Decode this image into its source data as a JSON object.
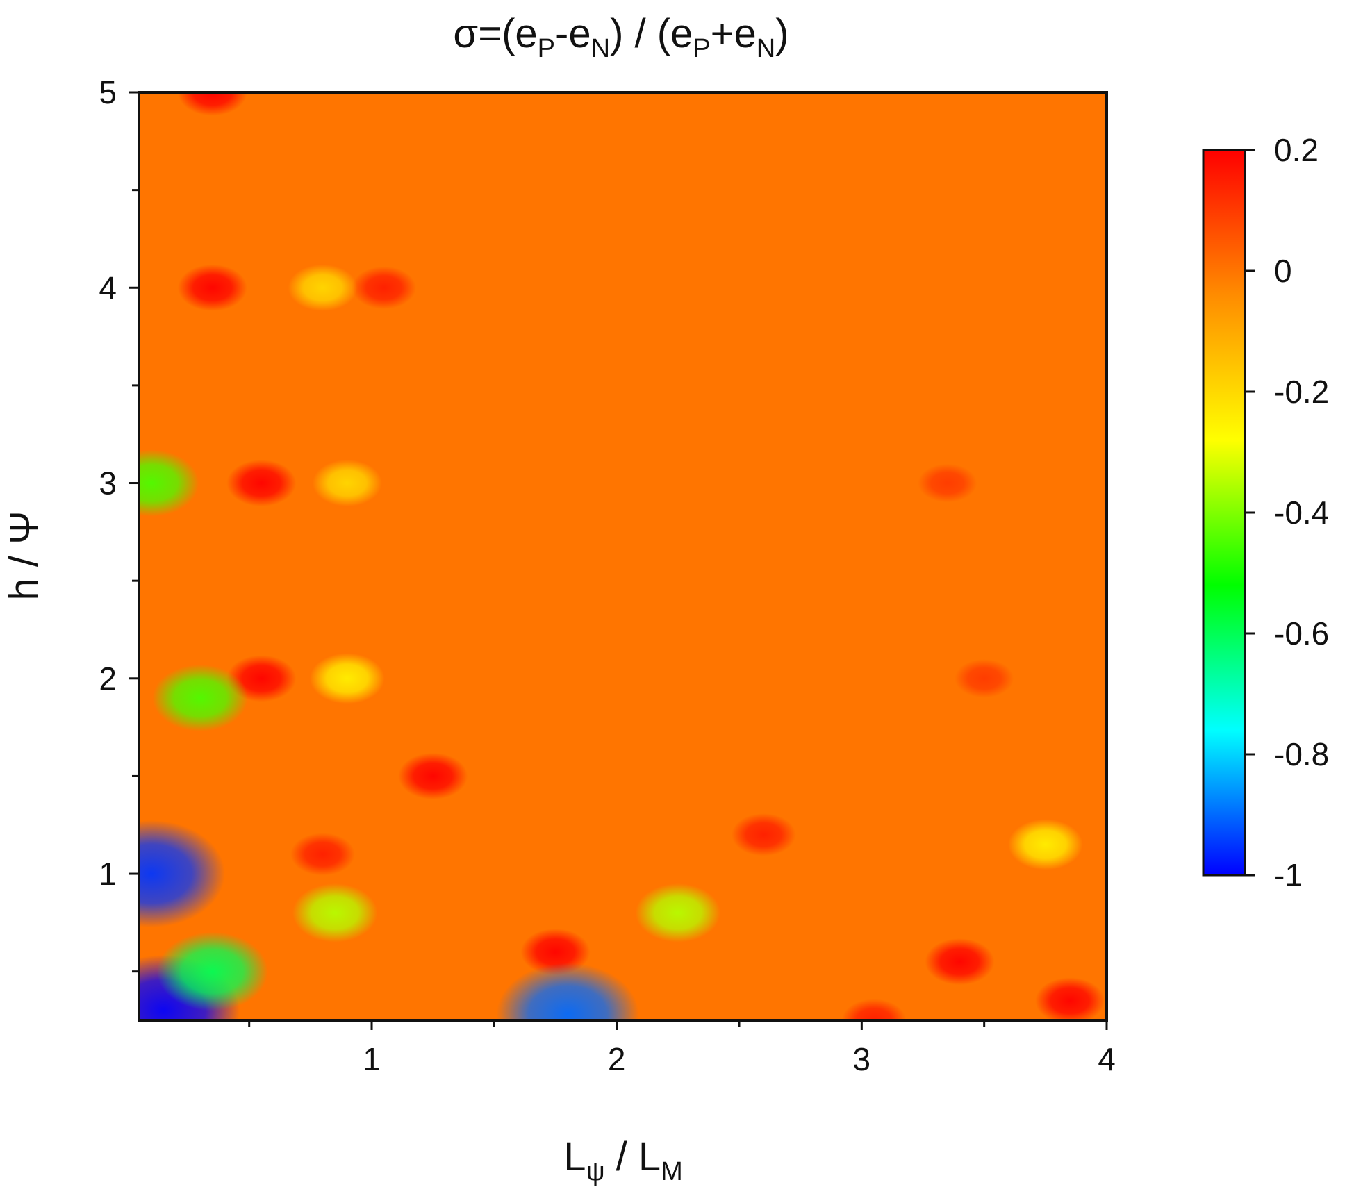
{
  "chart_data": {
    "type": "heatmap",
    "title": "σ=(eP-eN) / (eP+eN)",
    "title_parts": {
      "main_prefix": "σ=(e",
      "sub_p1": "P",
      "main_mid1": "-e",
      "sub_n1": "N",
      "main_mid2": ") / (e",
      "sub_p2": "P",
      "main_mid3": "+e",
      "sub_n2": "N",
      "main_suffix": ")"
    },
    "xlabel": "Lψ / LM",
    "xlabel_parts": {
      "main1": "L",
      "sub1": "ψ",
      "main2": " / L",
      "sub2": "M"
    },
    "ylabel": "h / Ψ",
    "xlim": [
      0.05,
      4.0
    ],
    "ylim": [
      0.25,
      5.0
    ],
    "x_ticks": [
      "1",
      "2",
      "3",
      "4"
    ],
    "x_tick_values": [
      1,
      2,
      3,
      4
    ],
    "y_ticks": [
      "1",
      "2",
      "3",
      "4",
      "5"
    ],
    "y_tick_values": [
      1,
      2,
      3,
      4,
      5
    ],
    "colorbar": {
      "min": -1.0,
      "max": 0.2,
      "tick_labels": [
        "0.2",
        "0",
        "-0.2",
        "-0.4",
        "-0.6",
        "-0.8",
        "-1"
      ],
      "tick_values": [
        0.2,
        0.0,
        -0.2,
        -0.4,
        -0.6,
        -0.8,
        -1.0
      ],
      "colors": [
        "#0000ff",
        "#00ffff",
        "#00ff00",
        "#ffff00",
        "#ff8c00",
        "#ff0000"
      ]
    },
    "background_value": 0.0,
    "features": [
      {
        "x": 0.35,
        "y": 5.0,
        "value": 0.2
      },
      {
        "x": 0.35,
        "y": 4.0,
        "value": 0.2
      },
      {
        "x": 0.55,
        "y": 3.0,
        "value": 0.2
      },
      {
        "x": 0.55,
        "y": 2.0,
        "value": 0.2
      },
      {
        "x": 1.25,
        "y": 1.5,
        "value": 0.2
      },
      {
        "x": 1.75,
        "y": 0.6,
        "value": 0.2
      },
      {
        "x": 1.05,
        "y": 4.0,
        "value": 0.15
      },
      {
        "x": 0.8,
        "y": 1.1,
        "value": 0.15
      },
      {
        "x": 3.4,
        "y": 0.55,
        "value": 0.2
      },
      {
        "x": 3.85,
        "y": 0.35,
        "value": 0.2
      },
      {
        "x": 3.05,
        "y": 0.25,
        "value": 0.15
      },
      {
        "x": 2.6,
        "y": 1.2,
        "value": 0.15
      },
      {
        "x": 3.5,
        "y": 2.0,
        "value": 0.1
      },
      {
        "x": 3.35,
        "y": 3.0,
        "value": 0.1
      },
      {
        "x": 0.9,
        "y": 3.0,
        "value": -0.2
      },
      {
        "x": 0.9,
        "y": 2.0,
        "value": -0.25
      },
      {
        "x": 0.8,
        "y": 4.0,
        "value": -0.2
      },
      {
        "x": 0.85,
        "y": 0.8,
        "value": -0.35
      },
      {
        "x": 0.3,
        "y": 1.9,
        "value": -0.45
      },
      {
        "x": 2.25,
        "y": 0.8,
        "value": -0.35
      },
      {
        "x": 3.75,
        "y": 1.15,
        "value": -0.25
      },
      {
        "x": 0.1,
        "y": 3.0,
        "value": -0.45
      },
      {
        "x": 0.1,
        "y": 1.0,
        "value": -0.95
      },
      {
        "x": 0.15,
        "y": 0.3,
        "value": -1.0
      },
      {
        "x": 0.35,
        "y": 0.5,
        "value": -0.6
      },
      {
        "x": 1.8,
        "y": 0.28,
        "value": -0.9
      }
    ]
  }
}
